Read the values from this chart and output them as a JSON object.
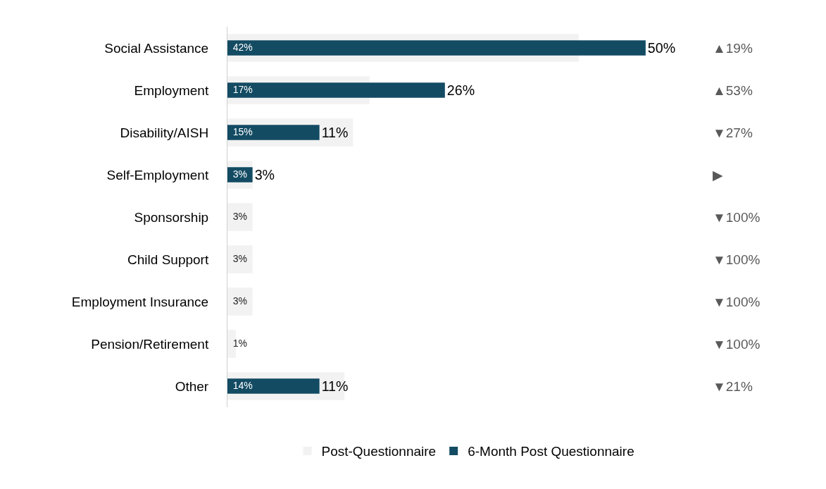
{
  "chart_data": {
    "type": "bar",
    "orientation": "horizontal",
    "categories": [
      "Social Assistance",
      "Employment",
      "Disability/AISH",
      "Self-Employment",
      "Sponsorship",
      "Child Support",
      "Employment Insurance",
      "Pension/Retirement",
      "Other"
    ],
    "series": [
      {
        "name": "Post-Questionnaire",
        "color": "#f2f2f2",
        "values": [
          42,
          17,
          15,
          3,
          3,
          3,
          3,
          1,
          14
        ],
        "value_labels": [
          "42%",
          "17%",
          "15%",
          "3%",
          "3%",
          "3%",
          "3%",
          "1%",
          "14%"
        ]
      },
      {
        "name": "6-Month Post Questionnaire",
        "color": "#134b63",
        "values": [
          50,
          26,
          11,
          3,
          0,
          0,
          0,
          0,
          11
        ],
        "value_labels": [
          "50%",
          "26%",
          "11%",
          "3%",
          null,
          null,
          null,
          null,
          "11%"
        ]
      }
    ],
    "annotations": [
      "▲19%",
      "▲53%",
      "▼27%",
      "▶",
      "▼100%",
      "▼100%",
      "▼100%",
      "▼100%",
      "▼21%"
    ],
    "legend": "bottom"
  }
}
